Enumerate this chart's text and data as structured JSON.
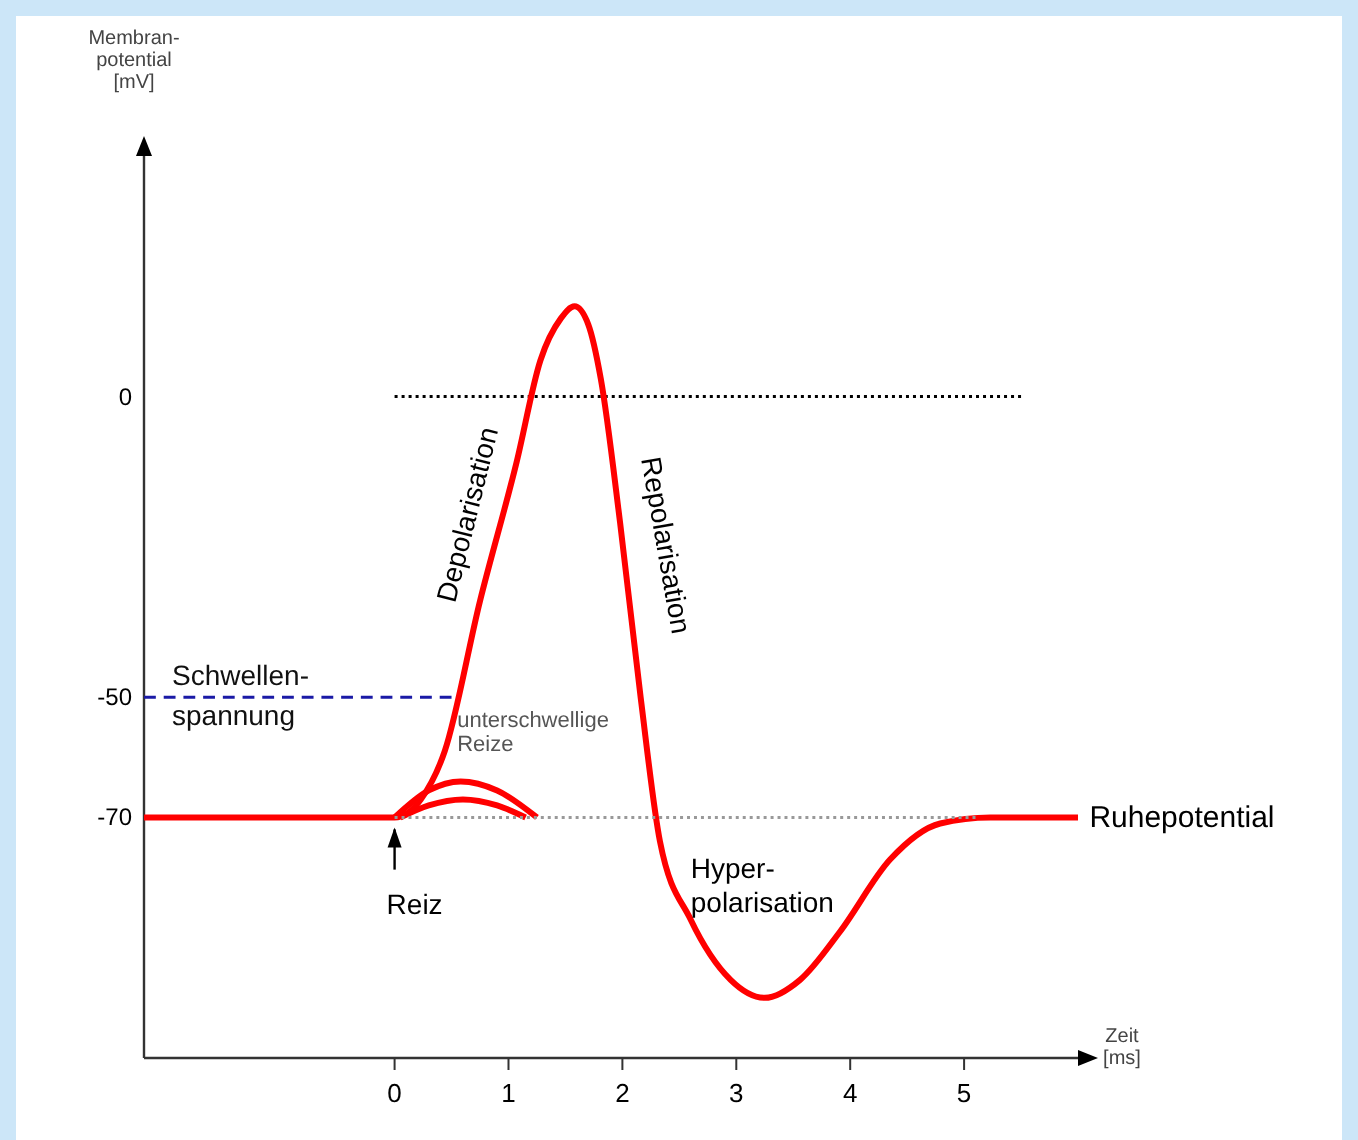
{
  "chart_data": {
    "type": "line",
    "xlabel": "Zeit\n[ms]",
    "ylabel": "Membran-\npotential\n[mV]",
    "xlim": [
      -2.2,
      6.0
    ],
    "ylim": [
      -110,
      40
    ],
    "xticks": [
      0,
      1,
      2,
      3,
      4,
      5
    ],
    "yticks": [
      0,
      -50,
      -70
    ],
    "series": [
      {
        "color": "#000000",
        "line_style": "dotted",
        "x": [
          0,
          5.5
        ],
        "values": [
          0,
          0
        ]
      },
      {
        "name": "Schwellen-\nspannung",
        "color": "#1a1aa6",
        "line_style": "dashed",
        "x": [
          -2.2,
          0.5
        ],
        "values": [
          -50,
          -50
        ]
      },
      {
        "color": "#ff0000",
        "line_style": "solid",
        "x": [
          0,
          0.3,
          0.58,
          0.9,
          1.25
        ],
        "values": [
          -70,
          -65.5,
          -64,
          -65.5,
          -70
        ]
      },
      {
        "color": "#ff0000",
        "line_style": "solid",
        "x": [
          0.05,
          0.3,
          0.6,
          0.9,
          1.15
        ],
        "values": [
          -70,
          -68,
          -67,
          -68,
          -70
        ]
      },
      {
        "color": "#ff0000",
        "line_style": "solid",
        "x": [
          -2.2,
          0,
          0.23,
          0.44,
          0.75,
          1.07,
          1.28,
          1.46,
          1.58,
          1.7,
          1.81,
          1.98,
          2.16,
          2.33,
          2.6,
          2.95,
          3.25,
          3.56,
          3.91,
          4.35,
          4.79,
          5.23,
          6.0
        ],
        "values": [
          -70,
          -70,
          -67,
          -59,
          -34,
          -11,
          6,
          13,
          15,
          12,
          3,
          -21,
          -50,
          -74,
          -87,
          -97,
          -100,
          -97,
          -89,
          -77,
          -71,
          -70,
          -70
        ]
      },
      {
        "color": "#999999",
        "line_style": "dotted",
        "x": [
          0,
          5.1
        ],
        "values": [
          -70,
          -70
        ]
      }
    ],
    "annotations": [
      "Depolarisation",
      "Repolarisation",
      "unterschwellige\nReize",
      "Reiz",
      "Hyper-\npolarisation",
      "Ruhepotential"
    ]
  }
}
